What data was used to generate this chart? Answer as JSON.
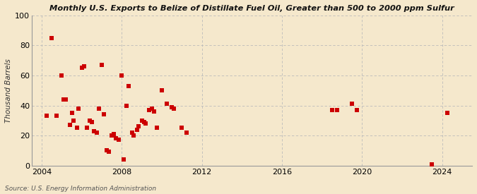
{
  "title": "Monthly U.S. Exports to Belize of Distillate Fuel Oil, Greater than 500 to 2000 ppm Sulfur",
  "ylabel": "Thousand Barrels",
  "source": "Source: U.S. Energy Information Administration",
  "background_color": "#f5e8cc",
  "plot_bg_color": "#f5e8cc",
  "marker_color": "#cc0000",
  "xlim": [
    2003.5,
    2025.5
  ],
  "ylim": [
    0,
    100
  ],
  "yticks": [
    0,
    20,
    40,
    60,
    80,
    100
  ],
  "xticks": [
    2004,
    2008,
    2012,
    2016,
    2020,
    2024
  ],
  "data_points": [
    [
      2004.25,
      33
    ],
    [
      2004.5,
      85
    ],
    [
      2004.75,
      33
    ],
    [
      2005.0,
      60
    ],
    [
      2005.1,
      44
    ],
    [
      2005.2,
      44
    ],
    [
      2005.4,
      27
    ],
    [
      2005.5,
      35
    ],
    [
      2005.6,
      30
    ],
    [
      2005.75,
      25
    ],
    [
      2005.85,
      38
    ],
    [
      2006.0,
      65
    ],
    [
      2006.1,
      66
    ],
    [
      2006.25,
      25
    ],
    [
      2006.4,
      30
    ],
    [
      2006.5,
      29
    ],
    [
      2006.6,
      23
    ],
    [
      2006.75,
      22
    ],
    [
      2006.85,
      38
    ],
    [
      2007.0,
      67
    ],
    [
      2007.1,
      34
    ],
    [
      2007.25,
      10
    ],
    [
      2007.35,
      9
    ],
    [
      2007.5,
      20
    ],
    [
      2007.6,
      21
    ],
    [
      2007.7,
      18
    ],
    [
      2007.85,
      17
    ],
    [
      2008.0,
      60
    ],
    [
      2008.1,
      4
    ],
    [
      2008.25,
      40
    ],
    [
      2008.35,
      53
    ],
    [
      2008.5,
      22
    ],
    [
      2008.6,
      20
    ],
    [
      2008.75,
      24
    ],
    [
      2008.85,
      26
    ],
    [
      2009.0,
      30
    ],
    [
      2009.1,
      29
    ],
    [
      2009.2,
      28
    ],
    [
      2009.35,
      37
    ],
    [
      2009.5,
      38
    ],
    [
      2009.6,
      36
    ],
    [
      2009.75,
      25
    ],
    [
      2010.0,
      50
    ],
    [
      2010.25,
      41
    ],
    [
      2010.5,
      39
    ],
    [
      2010.6,
      38
    ],
    [
      2011.0,
      25
    ],
    [
      2011.25,
      22
    ],
    [
      2018.5,
      37
    ],
    [
      2018.75,
      37
    ],
    [
      2019.5,
      41
    ],
    [
      2019.75,
      37
    ],
    [
      2023.5,
      1
    ],
    [
      2024.25,
      35
    ]
  ]
}
